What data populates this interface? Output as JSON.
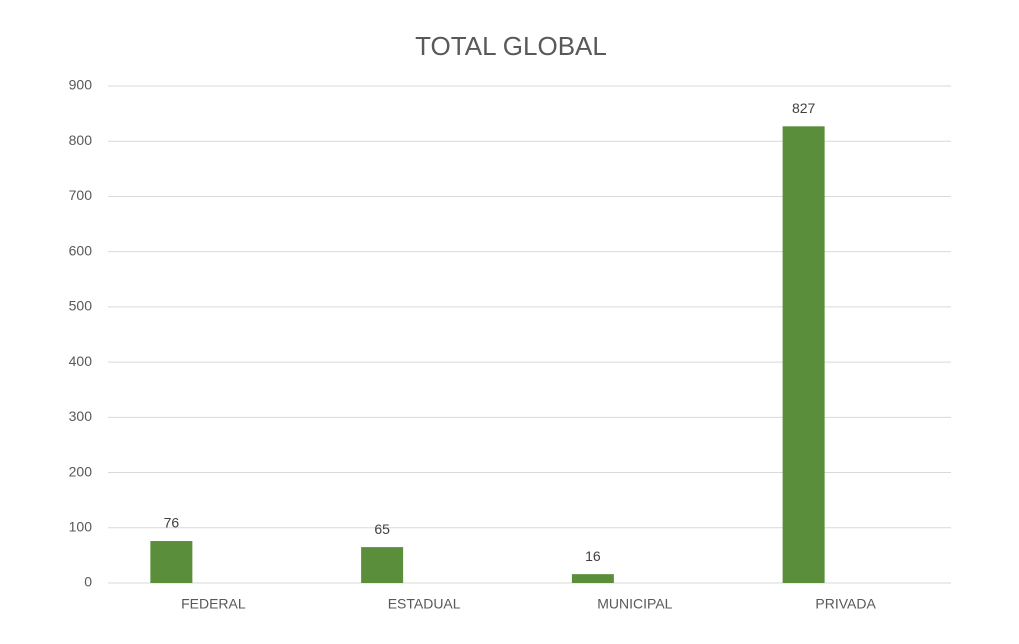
{
  "chart_data": {
    "type": "bar",
    "title": "TOTAL GLOBAL",
    "categories": [
      "FEDERAL",
      "ESTADUAL",
      "MUNICIPAL",
      "PRIVADA"
    ],
    "values": [
      76,
      65,
      16,
      827
    ],
    "color": "#5b8e3a",
    "ylim": [
      0,
      900
    ],
    "yticks": [
      0,
      100,
      200,
      300,
      400,
      500,
      600,
      700,
      800,
      900
    ],
    "grid": true
  }
}
